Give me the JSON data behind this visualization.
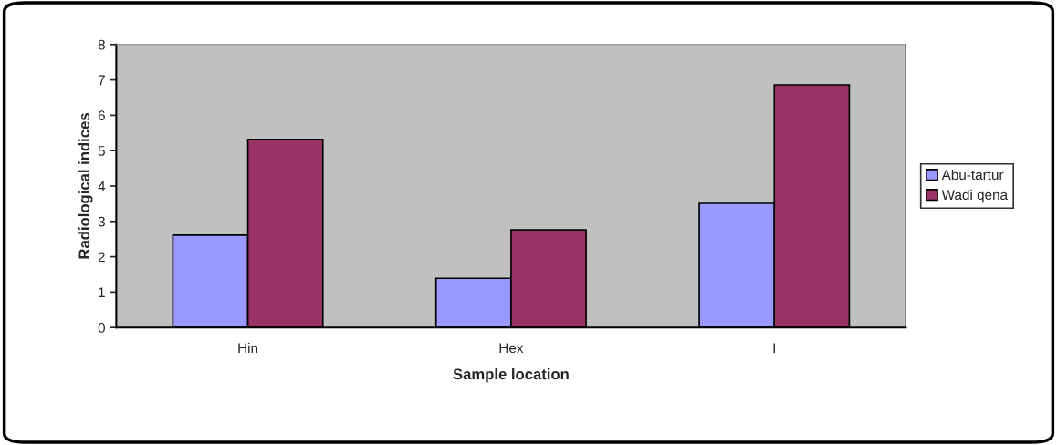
{
  "chart_data": {
    "type": "bar",
    "xlabel": "Sample location",
    "ylabel": "Radiological indices",
    "categories": [
      "Hin",
      "Hex",
      "I"
    ],
    "series": [
      {
        "name": "Abu-tartur",
        "color": "#9999ff",
        "values": [
          2.61,
          1.39,
          3.51
        ]
      },
      {
        "name": "Wadi qena",
        "color": "#993366",
        "values": [
          5.32,
          2.76,
          6.86
        ]
      }
    ],
    "ylim": [
      0,
      8
    ],
    "yticks": [
      0,
      1,
      2,
      3,
      4,
      5,
      6,
      7,
      8
    ],
    "grid": false,
    "legend": "right"
  }
}
